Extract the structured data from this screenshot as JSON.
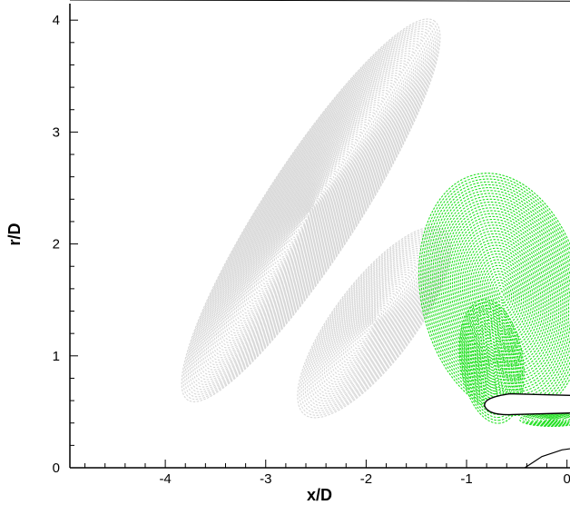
{
  "chart_data": {
    "type": "scatter",
    "title": "",
    "xlabel": "x/D",
    "ylabel": "r/D",
    "xlim": [
      -4.95,
      0.03
    ],
    "ylim": [
      0,
      4.18
    ],
    "x_ticks": [
      -4,
      -3,
      -2,
      -1,
      0
    ],
    "x_tick_labels": [
      "-4",
      "-3",
      "-2",
      "-1",
      "0"
    ],
    "y_ticks": [
      0,
      1,
      2,
      3,
      4
    ],
    "y_tick_labels": [
      "0",
      "1",
      "2",
      "3",
      "4"
    ],
    "grid": false,
    "legend": "none",
    "series": [
      {
        "style": "acoustic wavefront rings (grey)",
        "color": "#d8d8d8",
        "regions": [
          {
            "cx": -2.55,
            "cy": 2.3,
            "rx": 2.25,
            "ry": 0.42,
            "rot_deg": -57
          },
          {
            "cx": -1.92,
            "cy": 1.3,
            "rx": 1.15,
            "ry": 0.36,
            "rot_deg": -53
          }
        ]
      },
      {
        "style": "acoustic wavefront rings (green)",
        "color": "#22e022",
        "regions": [
          {
            "cx": -0.65,
            "cy": 1.55,
            "rx": 1.22,
            "ry": 0.72,
            "rot_deg": 78
          },
          {
            "cx": -0.75,
            "cy": 0.95,
            "rx": 0.62,
            "ry": 0.28,
            "rot_deg": 82
          },
          {
            "cx": -0.15,
            "cy": 0.43,
            "rx": 0.32,
            "ry": 0.06,
            "rot_deg": 0
          }
        ]
      }
    ],
    "geometry": {
      "nacelle": {
        "x0": -0.82,
        "x1": 0.03,
        "y_mid": 0.56,
        "thickness": 0.17
      },
      "hub_curve": [
        [
          -0.42,
          0.0
        ],
        [
          -0.25,
          0.1
        ],
        [
          -0.05,
          0.16
        ],
        [
          0.03,
          0.17
        ]
      ],
      "top_boundary": {
        "y_left": 4.18,
        "y_right": 4.17
      }
    },
    "colors": {
      "axis": "#000000",
      "grey": "#d8d8d8",
      "green": "#22e022",
      "background": "#ffffff"
    }
  }
}
